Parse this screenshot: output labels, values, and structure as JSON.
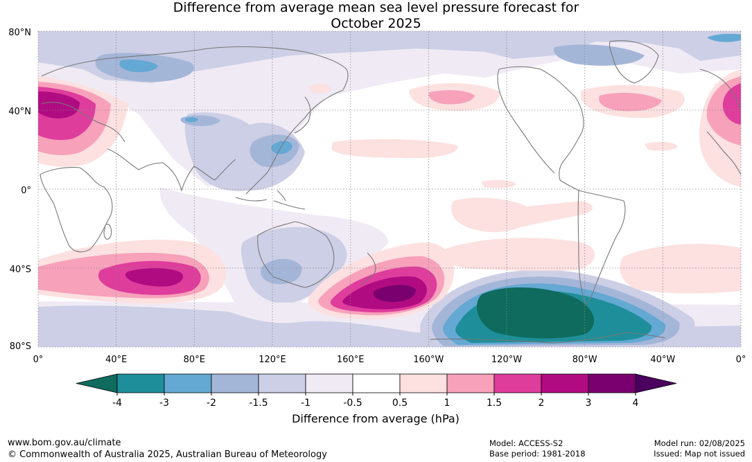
{
  "title_line1": "Difference from average mean sea level pressure forecast for",
  "title_line2": "October 2025",
  "lat_labels": [
    "80°N",
    "40°N",
    "0°",
    "40°S",
    "80°S"
  ],
  "lon_labels": [
    "0°",
    "40°E",
    "80°E",
    "120°E",
    "160°E",
    "160°W",
    "120°W",
    "80°W",
    "40°W",
    "0°"
  ],
  "colorbar": {
    "colors": [
      "#0e6b5e",
      "#1e8f9a",
      "#64a8d4",
      "#a4b6d8",
      "#cdcfe6",
      "#f0eaf4",
      "#ffffff",
      "#fde0e0",
      "#f7a1bb",
      "#de3d9c",
      "#b10b82",
      "#7a006f",
      "#4b0060"
    ],
    "ticks": [
      "-4",
      "-3",
      "-2",
      "-1.5",
      "-1",
      "-0.5",
      "0.5",
      "1",
      "1.5",
      "2",
      "3",
      "4"
    ],
    "label": "Difference from average (hPa)"
  },
  "footer": {
    "website": "www.bom.gov.au/climate",
    "copyright": "© Commonwealth of Australia 2025, Australian Bureau of Meteorology",
    "model": "Model: ACCESS-S2",
    "base_period": "Base period: 1981-2018",
    "model_run": "Model run: 02/08/2025",
    "issued": "Issued: Map not issued"
  }
}
